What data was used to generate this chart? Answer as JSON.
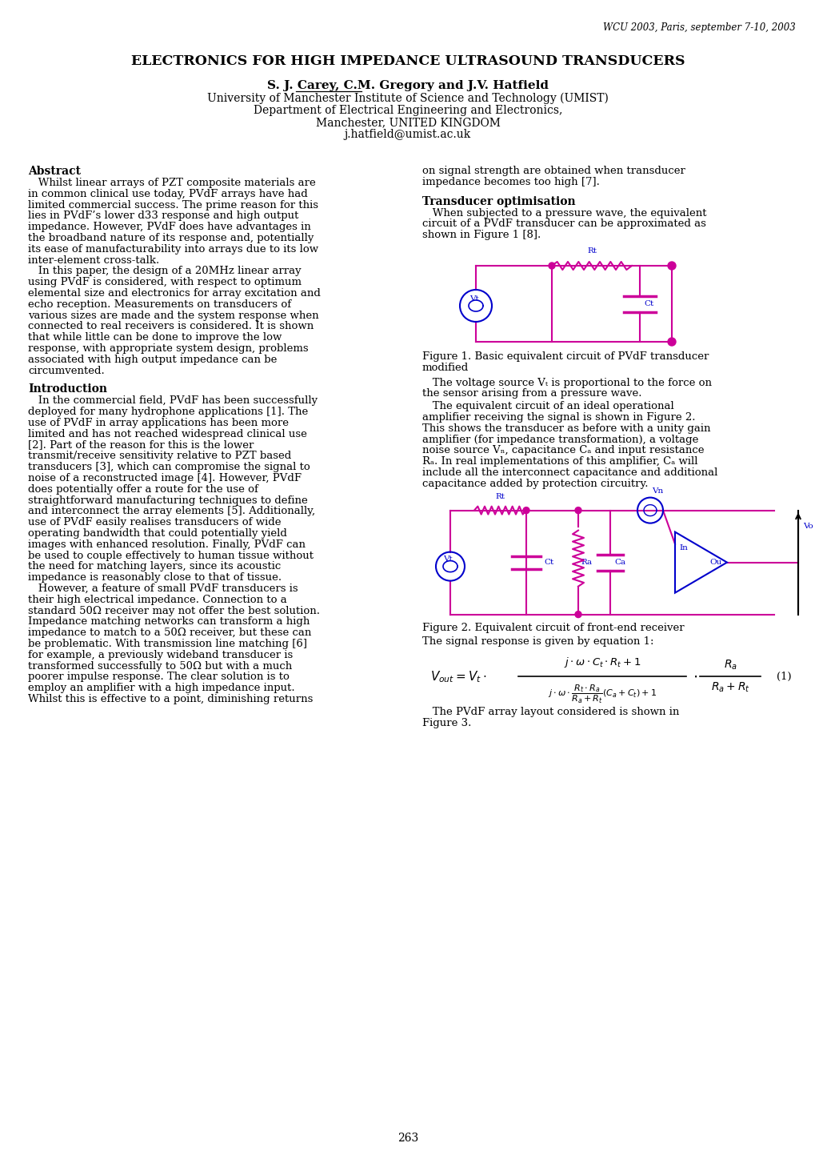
{
  "header_text": "WCU 2003, Paris, september 7-10, 2003",
  "title": "ELECTRONICS FOR HIGH IMPEDANCE ULTRASOUND TRANSDUCERS",
  "author_carey": "S. J. Carey",
  "author_rest": ", C.M. Gregory and J.V. Hatfield",
  "affil1": "University of Manchester Institute of Science and Technology (UMIST)",
  "affil2": "Department of Electrical Engineering and Electronics,",
  "affil3": "Manchester, UNITED KINGDOM",
  "affil4": "j.hatfield@umist.ac.uk",
  "abstract_heading": "Abstract",
  "intro_heading": "Introduction",
  "transducer_heading": "Transducer optimisation",
  "fig1_caption_line1": "Figure 1. Basic equivalent circuit of PVdF transducer",
  "fig1_caption_line2": "modified",
  "fig2_caption": "Figure 2. Equivalent circuit of front-end receiver",
  "eq_intro": "The signal response is given by equation 1:",
  "pvdf_line1": "   The PVdF array layout considered is shown in",
  "pvdf_line2": "Figure 3.",
  "page_number": "263",
  "bg_color": "#ffffff",
  "text_color": "#000000",
  "mc": "#cc0099",
  "bc": "#0000cc",
  "abstract_lines": [
    "   Whilst linear arrays of PZT composite materials are",
    "in common clinical use today, PVdF arrays have had",
    "limited commercial success. The prime reason for this",
    "lies in PVdF’s lower d33 response and high output",
    "impedance. However, PVdF does have advantages in",
    "the broadband nature of its response and, potentially",
    "its ease of manufacturability into arrays due to its low",
    "inter-element cross-talk.",
    "   In this paper, the design of a 20MHz linear array",
    "using PVdF is considered, with respect to optimum",
    "elemental size and electronics for array excitation and",
    "echo reception. Measurements on transducers of",
    "various sizes are made and the system response when",
    "connected to real receivers is considered. It is shown",
    "that while little can be done to improve the low",
    "response, with appropriate system design, problems",
    "associated with high output impedance can be",
    "circumvented."
  ],
  "intro_lines": [
    "   In the commercial field, PVdF has been successfully",
    "deployed for many hydrophone applications [1]. The",
    "use of PVdF in array applications has been more",
    "limited and has not reached widespread clinical use",
    "[2]. Part of the reason for this is the lower",
    "transmit/receive sensitivity relative to PZT based",
    "transducers [3], which can compromise the signal to",
    "noise of a reconstructed image [4]. However, PVdF",
    "does potentially offer a route for the use of",
    "straightforward manufacturing techniques to define",
    "and interconnect the array elements [5]. Additionally,",
    "use of PVdF easily realises transducers of wide",
    "operating bandwidth that could potentially yield",
    "images with enhanced resolution. Finally, PVdF can",
    "be used to couple effectively to human tissue without",
    "the need for matching layers, since its acoustic",
    "impedance is reasonably close to that of tissue.",
    "   However, a feature of small PVdF transducers is",
    "their high electrical impedance. Connection to a",
    "standard 50Ω receiver may not offer the best solution.",
    "Impedance matching networks can transform a high",
    "impedance to match to a 50Ω receiver, but these can",
    "be problematic. With transmission line matching [6]",
    "for example, a previously wideband transducer is",
    "transformed successfully to 50Ω but with a much",
    "poorer impulse response. The clear solution is to",
    "employ an amplifier with a high impedance input.",
    "Whilst this is effective to a point, diminishing returns"
  ],
  "right_top_lines": [
    "on signal strength are obtained when transducer",
    "impedance becomes too high [7]."
  ],
  "transducer_lines": [
    "   When subjected to a pressure wave, the equivalent",
    "circuit of a PVdF transducer can be approximated as",
    "shown in Figure 1 [8]."
  ],
  "vt_lines": [
    "   The voltage source Vₜ is proportional to the force on",
    "the sensor arising from a pressure wave."
  ],
  "opamp_lines": [
    "   The equivalent circuit of an ideal operational",
    "amplifier receiving the signal is shown in Figure 2.",
    "This shows the transducer as before with a unity gain",
    "amplifier (for impedance transformation), a voltage",
    "noise source Vₙ, capacitance Cₐ and input resistance",
    "Rₐ. In real implementations of this amplifier, Cₐ will",
    "include all the interconnect capacitance and additional",
    "capacitance added by protection circuitry."
  ]
}
